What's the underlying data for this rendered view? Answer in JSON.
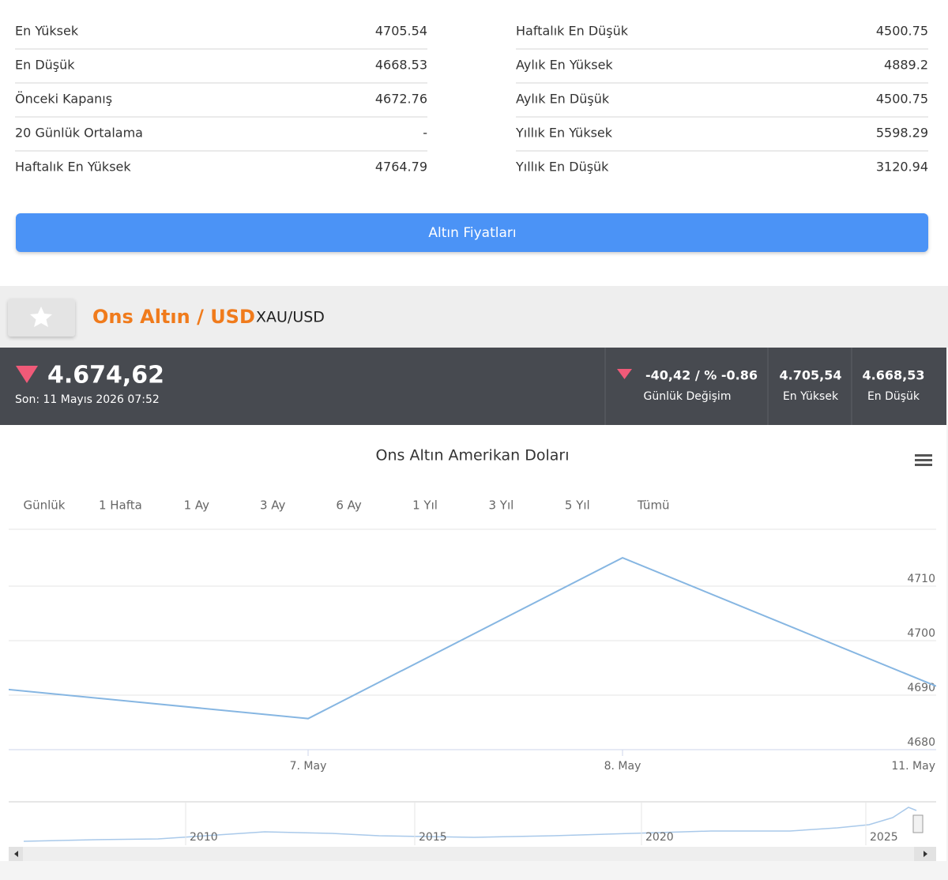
{
  "stats": {
    "left": [
      {
        "label": "En Yüksek",
        "value": "4705.54"
      },
      {
        "label": "En Düşük",
        "value": "4668.53"
      },
      {
        "label": "Önceki Kapanış",
        "value": "4672.76"
      },
      {
        "label": "20 Günlük Ortalama",
        "value": "-"
      },
      {
        "label": "Haftalık En Yüksek",
        "value": "4764.79"
      }
    ],
    "right": [
      {
        "label": "Haftalık En Düşük",
        "value": "4500.75"
      },
      {
        "label": "Aylık En Yüksek",
        "value": "4889.2"
      },
      {
        "label": "Aylık En Düşük",
        "value": "4500.75"
      },
      {
        "label": "Yıllık En Yüksek",
        "value": "5598.29"
      },
      {
        "label": "Yıllık En Düşük",
        "value": "3120.94"
      }
    ]
  },
  "button": "Altın Fiyatları",
  "instrument": {
    "name": "Ons Altın / USD",
    "symbol": "XAU/USD"
  },
  "ticker": {
    "price": "4.674,62",
    "updated": "Son: 11 Mayıs 2026 07:52",
    "change": {
      "value": "-40,42 / % -0.86",
      "label": "Günlük Değişim"
    },
    "high": {
      "value": "4.705,54",
      "label": "En Yüksek"
    },
    "low": {
      "value": "4.668,53",
      "label": "En Düşük"
    }
  },
  "chart_data": {
    "type": "line",
    "title": "Ons Altın Amerikan Doları",
    "range_buttons": [
      "Günlük",
      "1 Hafta",
      "1 Ay",
      "3 Ay",
      "6 Ay",
      "1 Yıl",
      "3 Yıl",
      "5 Yıl",
      "Tümü"
    ],
    "categories": [
      null,
      "7. May",
      "8. May",
      "11. May"
    ],
    "values": [
      4691.3,
      4685.7,
      4715.2,
      4691.6
    ],
    "color": "#86b6e2",
    "ylim": [
      4680,
      4720
    ],
    "yticks": [
      4680,
      4690,
      4700,
      4710
    ],
    "grid": true
  },
  "navigator": {
    "labels": [
      "2010",
      "2015",
      "2020",
      "2025"
    ]
  }
}
